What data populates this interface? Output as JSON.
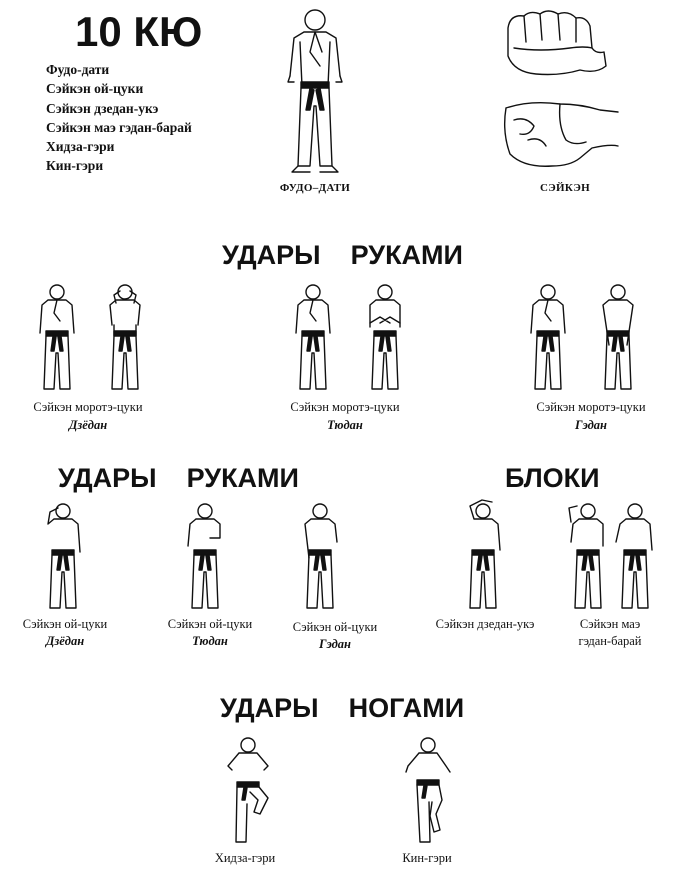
{
  "header": {
    "title": "10 КЮ",
    "techniques": [
      "Фудо-дати",
      "Сэйкэн ой-цуки",
      "Сэйкэн дзедан-укэ",
      "Сэйкэн маэ гэдан-барай",
      "Хидза-гэри",
      "Кин-гэри"
    ]
  },
  "top": {
    "stance_caption": "ФУДО–ДАТИ",
    "fist_caption": "СЭЙКЭН"
  },
  "section1": {
    "title_left": "УДАРЫ",
    "title_right": "РУКАМИ",
    "items": [
      {
        "name": "Сэйкэн моротэ-цуки",
        "level": "Дзёдан"
      },
      {
        "name": "Сэйкэн моротэ-цуки",
        "level": "Тюдан"
      },
      {
        "name": "Сэйкэн моротэ-цуки",
        "level": "Гэдан"
      }
    ]
  },
  "section2": {
    "title_left": "УДАРЫ",
    "title_right": "РУКАМИ",
    "items": [
      {
        "name": "Сэйкэн ой-цуки",
        "level": "Дзёдан"
      },
      {
        "name": "Сэйкэн ой-цуки",
        "level": "Тюдан"
      },
      {
        "name": "Сэйкэн ой-цуки",
        "level": "Гэдан"
      }
    ]
  },
  "section3": {
    "title": "БЛОКИ",
    "items": [
      {
        "name": "Сэйкэн дзедан-укэ"
      },
      {
        "name_line1": "Сэйкэн маэ",
        "name_line2": "гэдан-барай"
      }
    ]
  },
  "section4": {
    "title_left": "УДАРЫ",
    "title_right": "НОГАМИ",
    "items": [
      {
        "name": "Хидза-гэри"
      },
      {
        "name": "Кин-гэри"
      }
    ]
  }
}
